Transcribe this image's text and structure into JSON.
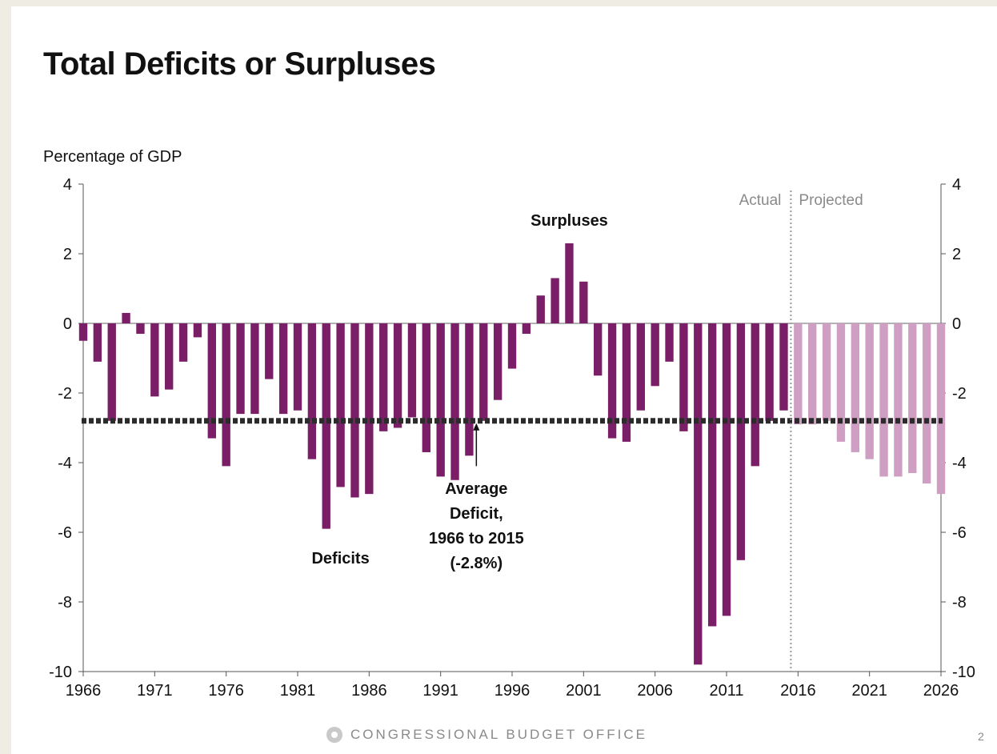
{
  "slide": {
    "title": "Total Deficits or Surpluses",
    "footer": "CONGRESSIONAL BUDGET OFFICE",
    "page_number": "2"
  },
  "colors": {
    "actual_bar": "#7a1f67",
    "projected_bar": "#cf9fc3",
    "average_line": "#2b2b2b",
    "divider": "#9a9a9a"
  },
  "chart_data": {
    "type": "bar",
    "title": "Total Deficits or Surpluses",
    "ylabel": "Percentage of GDP",
    "ylim": [
      -10,
      4
    ],
    "yticks": [
      "4",
      "2",
      "0",
      "-2",
      "-4",
      "-6",
      "-8",
      "-10"
    ],
    "ytick_values": [
      4,
      2,
      0,
      -2,
      -4,
      -6,
      -8,
      -10
    ],
    "xticks": [
      "1966",
      "1971",
      "1976",
      "1981",
      "1986",
      "1991",
      "1996",
      "2001",
      "2006",
      "2011",
      "2016",
      "2021",
      "2026"
    ],
    "xlim": [
      1966,
      2026
    ],
    "actual_label": "Actual",
    "projected_label": "Projected",
    "projection_start": 2016,
    "series": [
      {
        "name": "Actual",
        "x": [
          1966,
          1967,
          1968,
          1969,
          1970,
          1971,
          1972,
          1973,
          1974,
          1975,
          1976,
          1977,
          1978,
          1979,
          1980,
          1981,
          1982,
          1983,
          1984,
          1985,
          1986,
          1987,
          1988,
          1989,
          1990,
          1991,
          1992,
          1993,
          1994,
          1995,
          1996,
          1997,
          1998,
          1999,
          2000,
          2001,
          2002,
          2003,
          2004,
          2005,
          2006,
          2007,
          2008,
          2009,
          2010,
          2011,
          2012,
          2013,
          2014,
          2015
        ],
        "values": [
          -0.5,
          -1.1,
          -2.8,
          0.3,
          -0.3,
          -2.1,
          -1.9,
          -1.1,
          -0.4,
          -3.3,
          -4.1,
          -2.6,
          -2.6,
          -1.6,
          -2.6,
          -2.5,
          -3.9,
          -5.9,
          -4.7,
          -5.0,
          -4.9,
          -3.1,
          -3.0,
          -2.7,
          -3.7,
          -4.4,
          -4.5,
          -3.8,
          -2.8,
          -2.2,
          -1.3,
          -0.3,
          0.8,
          1.3,
          2.3,
          1.2,
          -1.5,
          -3.3,
          -3.4,
          -2.5,
          -1.8,
          -1.1,
          -3.1,
          -9.8,
          -8.7,
          -8.4,
          -6.8,
          -4.1,
          -2.8,
          -2.5
        ]
      },
      {
        "name": "Projected",
        "x": [
          2016,
          2017,
          2018,
          2019,
          2020,
          2021,
          2022,
          2023,
          2024,
          2025,
          2026
        ],
        "values": [
          -2.9,
          -2.9,
          -2.8,
          -3.4,
          -3.7,
          -3.9,
          -4.4,
          -4.4,
          -4.3,
          -4.6,
          -4.9
        ]
      }
    ],
    "average": {
      "value": -2.8,
      "label_lines": [
        "Average",
        "Deficit,",
        "1966 to 2015",
        "(-2.8%)"
      ]
    },
    "annotations": [
      {
        "text": "Surpluses",
        "x": 2000,
        "y": 2.8
      },
      {
        "text": "Deficits",
        "x": 1984,
        "y": -6.9
      }
    ]
  }
}
